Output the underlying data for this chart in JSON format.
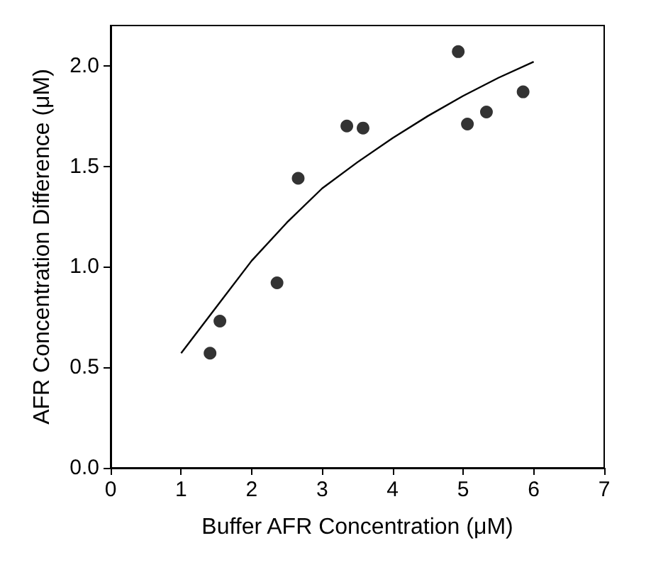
{
  "chart_data": {
    "type": "scatter",
    "xlabel": "Buffer AFR Concentration (μM)",
    "ylabel": "AFR Concentration Difference (μM)",
    "xlim": [
      0,
      7
    ],
    "xticks": [
      0,
      1,
      2,
      3,
      4,
      5,
      6,
      7
    ],
    "ylim": [
      0,
      2.2
    ],
    "yticks": [
      {
        "value": 0,
        "label": "0.0"
      },
      {
        "value": 0.5,
        "label": "0.5"
      },
      {
        "value": 1,
        "label": "1.0"
      },
      {
        "value": 1.5,
        "label": "1.5"
      },
      {
        "value": 2,
        "label": "2.0"
      }
    ],
    "grid": false,
    "marker": "circle",
    "series": [
      {
        "color": "#000000",
        "x": [
          1.41,
          1.55,
          2.36,
          2.66,
          3.35,
          3.58,
          4.93,
          5.06,
          5.33,
          5.85
        ],
        "values": [
          0.57,
          0.73,
          0.92,
          1.44,
          1.7,
          1.69,
          2.07,
          1.71,
          1.77,
          1.87
        ]
      },
      {
        "type": "line",
        "color": "#000000",
        "marker": "none",
        "line_style": "solid",
        "x": [
          1,
          1.5,
          2,
          2.5,
          3,
          3.5,
          4,
          4.5,
          5,
          5.5,
          6
        ],
        "values": [
          0.57,
          0.8,
          1.03,
          1.22,
          1.39,
          1.52,
          1.64,
          1.75,
          1.85,
          1.94,
          2.02
        ]
      }
    ]
  }
}
